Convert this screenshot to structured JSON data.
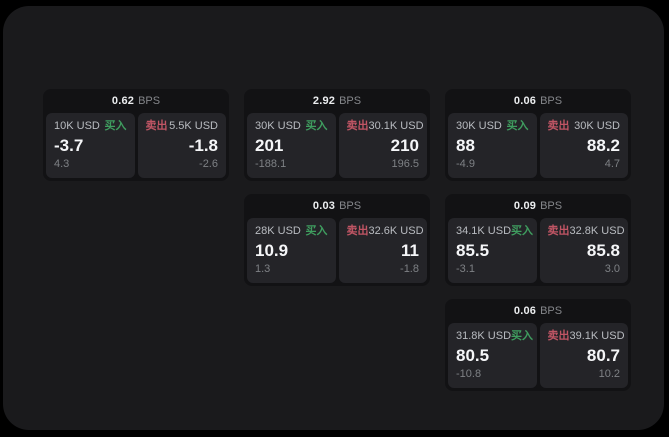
{
  "labels": {
    "bps_unit": "BPS",
    "buy": "买入",
    "sell": "卖出"
  },
  "colors": {
    "surface": "#1a1a1c",
    "card": "#121214",
    "panel": "#242428",
    "buy": "#3f9d5f",
    "sell": "#c05564"
  },
  "cards": [
    {
      "grid": {
        "row": 1,
        "col": 1
      },
      "bps": "0.62",
      "buy": {
        "amount": "10K USD",
        "main": "-3.7",
        "sub": "4.3"
      },
      "sell": {
        "amount": "5.5K USD",
        "main": "-1.8",
        "sub": "-2.6"
      }
    },
    {
      "grid": {
        "row": 1,
        "col": 2
      },
      "bps": "2.92",
      "buy": {
        "amount": "30K USD",
        "main": "201",
        "sub": "-188.1"
      },
      "sell": {
        "amount": "30.1K USD",
        "main": "210",
        "sub": "196.5"
      }
    },
    {
      "grid": {
        "row": 1,
        "col": 3
      },
      "bps": "0.06",
      "buy": {
        "amount": "30K USD",
        "main": "88",
        "sub": "-4.9"
      },
      "sell": {
        "amount": "30K USD",
        "main": "88.2",
        "sub": "4.7"
      }
    },
    {
      "grid": {
        "row": 2,
        "col": 2
      },
      "bps": "0.03",
      "buy": {
        "amount": "28K USD",
        "main": "10.9",
        "sub": "1.3"
      },
      "sell": {
        "amount": "32.6K USD",
        "main": "11",
        "sub": "-1.8"
      }
    },
    {
      "grid": {
        "row": 2,
        "col": 3
      },
      "bps": "0.09",
      "buy": {
        "amount": "34.1K USD",
        "main": "85.5",
        "sub": "-3.1"
      },
      "sell": {
        "amount": "32.8K USD",
        "main": "85.8",
        "sub": "3.0"
      }
    },
    {
      "grid": {
        "row": 3,
        "col": 3
      },
      "bps": "0.06",
      "buy": {
        "amount": "31.8K USD",
        "main": "80.5",
        "sub": "-10.8"
      },
      "sell": {
        "amount": "39.1K USD",
        "main": "80.7",
        "sub": "10.2"
      }
    }
  ]
}
